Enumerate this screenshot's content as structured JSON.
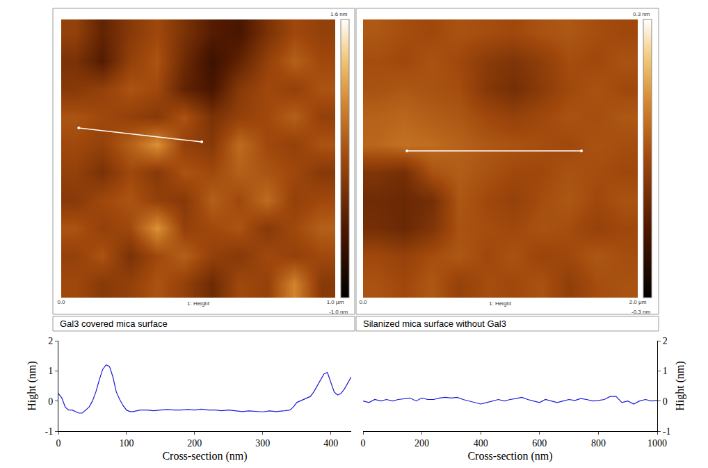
{
  "chart_data": [
    {
      "type": "heatmap",
      "caption": "Gal3 covered mica surface",
      "x_label": "1: Height",
      "x": [
        0.05,
        0.15,
        0.25,
        0.35,
        0.45,
        0.55,
        0.65,
        0.75,
        0.85,
        0.95
      ],
      "y": [
        0.05,
        0.15,
        0.25,
        0.35,
        0.45,
        0.55,
        0.65,
        0.75,
        0.85,
        0.95
      ],
      "z": [
        [
          0.3,
          0.1,
          0.2,
          0.4,
          0.2,
          -0.1,
          0.3,
          0.2,
          0.8,
          0.1
        ],
        [
          0.2,
          0.4,
          0.0,
          0.3,
          0.5,
          0.2,
          0.1,
          0.3,
          0.2,
          0.3
        ],
        [
          0.4,
          0.2,
          0.3,
          0.9,
          0.2,
          0.3,
          0.4,
          0.1,
          0.3,
          0.5
        ],
        [
          0.1,
          0.3,
          0.4,
          0.2,
          0.1,
          0.5,
          0.3,
          0.6,
          0.2,
          0.3
        ],
        [
          0.2,
          0.0,
          0.3,
          0.1,
          0.4,
          0.3,
          0.5,
          0.4,
          0.3,
          0.1
        ],
        [
          0.3,
          0.2,
          0.5,
          0.9,
          0.2,
          0.1,
          0.6,
          0.3,
          0.2,
          0.4
        ],
        [
          0.4,
          0.3,
          0.2,
          0.1,
          0.4,
          0.0,
          0.2,
          0.3,
          0.5,
          0.2
        ],
        [
          0.1,
          0.2,
          0.4,
          0.3,
          -0.2,
          -0.4,
          0.1,
          0.3,
          0.2,
          0.4
        ],
        [
          0.0,
          -0.3,
          0.2,
          0.4,
          -0.1,
          -0.5,
          -0.2,
          0.2,
          0.5,
          0.3
        ],
        [
          0.2,
          -0.2,
          0.1,
          0.3,
          0.0,
          -0.3,
          -0.4,
          0.0,
          0.3,
          0.2
        ]
      ],
      "colorbar": {
        "range": [
          -1.0,
          1.6
        ],
        "ticks": [
          {
            "value": 1.6,
            "label": "1.6 nm"
          },
          {
            "value": -1.0,
            "label": "-1.0 nm"
          }
        ]
      },
      "xlim": [
        0,
        1.0
      ],
      "ylim": [
        0,
        1.0
      ],
      "xticks": [
        {
          "value": 0,
          "label": "0.0"
        },
        {
          "value": 1.0,
          "label": "1.0 μm"
        }
      ],
      "tick_labels": "x",
      "profile_line": {
        "x": [
          0.064,
          0.513
        ],
        "y": [
          0.61,
          0.56
        ]
      }
    },
    {
      "type": "heatmap",
      "caption": "Silanized mica surface without Gal3",
      "x_label": "1: Height",
      "x": [
        0.1,
        0.3,
        0.5,
        0.7,
        0.9,
        1.1,
        1.3,
        1.5,
        1.7,
        1.9
      ],
      "y": [
        0.1,
        0.3,
        0.5,
        0.7,
        0.9,
        1.1,
        1.3,
        1.5,
        1.7,
        1.9
      ],
      "z": [
        [
          0.02,
          0.0,
          0.03,
          -0.02,
          0.01,
          0.0,
          0.02,
          -0.03,
          0.01,
          0.02
        ],
        [
          0.0,
          -0.02,
          0.01,
          0.03,
          0.0,
          0.02,
          -0.01,
          0.0,
          0.03,
          0.01
        ],
        [
          -0.08,
          -0.1,
          -0.06,
          0.02,
          0.01,
          0.0,
          0.02,
          0.01,
          -0.02,
          0.0
        ],
        [
          -0.09,
          -0.1,
          -0.08,
          0.03,
          0.0,
          -0.02,
          0.01,
          0.03,
          0.0,
          0.02
        ],
        [
          -0.06,
          -0.08,
          0.02,
          0.04,
          0.02,
          0.0,
          0.0,
          0.02,
          0.01,
          0.0
        ],
        [
          0.06,
          0.08,
          0.07,
          0.05,
          0.03,
          0.02,
          0.01,
          0.0,
          0.02,
          0.01
        ],
        [
          0.05,
          0.06,
          0.04,
          0.03,
          0.0,
          -0.02,
          0.0,
          0.02,
          0.01,
          0.03
        ],
        [
          0.02,
          0.03,
          0.02,
          0.01,
          -0.05,
          -0.08,
          -0.04,
          0.0,
          0.02,
          0.0
        ],
        [
          0.01,
          0.0,
          0.02,
          0.0,
          -0.04,
          -0.06,
          -0.03,
          0.01,
          0.0,
          0.02
        ],
        [
          0.03,
          0.01,
          0.0,
          0.02,
          0.01,
          0.0,
          0.02,
          0.03,
          0.01,
          0.0
        ]
      ],
      "colorbar": {
        "range": [
          -0.3,
          0.3
        ],
        "ticks": [
          {
            "value": 0.3,
            "label": "0.3 nm"
          },
          {
            "value": -0.3,
            "label": "-0.3 nm"
          }
        ]
      },
      "xlim": [
        0,
        2.0
      ],
      "ylim": [
        0,
        2.0
      ],
      "xticks": [
        {
          "value": 0,
          "label": "0.0"
        },
        {
          "value": 2.0,
          "label": "2.0 μm"
        }
      ],
      "tick_labels": "x",
      "profile_line": {
        "x": [
          0.32,
          1.59
        ],
        "y": [
          1.055,
          1.055
        ]
      }
    },
    {
      "type": "line",
      "x_label": "Cross-section (nm)",
      "y_label": "Hight (nm)",
      "x": [
        0,
        5,
        10,
        15,
        20,
        25,
        30,
        35,
        40,
        45,
        50,
        55,
        60,
        65,
        70,
        75,
        80,
        85,
        90,
        95,
        100,
        105,
        110,
        120,
        130,
        140,
        150,
        160,
        170,
        180,
        190,
        200,
        210,
        220,
        230,
        240,
        250,
        260,
        270,
        280,
        290,
        300,
        310,
        320,
        330,
        340,
        345,
        350,
        355,
        360,
        365,
        370,
        375,
        380,
        385,
        390,
        395,
        400,
        405,
        410,
        415,
        420,
        425,
        430
      ],
      "values": [
        0.25,
        0.1,
        -0.2,
        -0.3,
        -0.3,
        -0.35,
        -0.4,
        -0.4,
        -0.3,
        -0.2,
        0.0,
        0.3,
        0.7,
        1.05,
        1.2,
        1.15,
        0.8,
        0.3,
        0.05,
        -0.15,
        -0.3,
        -0.35,
        -0.35,
        -0.3,
        -0.3,
        -0.32,
        -0.3,
        -0.28,
        -0.3,
        -0.3,
        -0.28,
        -0.3,
        -0.27,
        -0.3,
        -0.3,
        -0.32,
        -0.3,
        -0.33,
        -0.35,
        -0.33,
        -0.35,
        -0.36,
        -0.33,
        -0.35,
        -0.33,
        -0.3,
        -0.2,
        -0.05,
        0.0,
        0.05,
        0.1,
        0.15,
        0.3,
        0.5,
        0.7,
        0.9,
        0.95,
        0.6,
        0.3,
        0.2,
        0.25,
        0.4,
        0.6,
        0.8
      ],
      "color": "#1a1adb",
      "xlim": [
        0,
        430
      ],
      "ylim": [
        -1,
        2
      ],
      "xticks": [
        0,
        100,
        200,
        300,
        400
      ],
      "yticks": [
        -1,
        0,
        1,
        2
      ],
      "grid": false
    },
    {
      "type": "line",
      "x_label": "Cross-section (nm)",
      "y_label": "Hight (nm)",
      "x": [
        0,
        20,
        40,
        60,
        80,
        100,
        120,
        140,
        160,
        180,
        200,
        220,
        240,
        260,
        280,
        300,
        320,
        340,
        360,
        380,
        400,
        420,
        440,
        460,
        480,
        500,
        520,
        540,
        560,
        580,
        600,
        620,
        640,
        660,
        680,
        700,
        720,
        740,
        760,
        780,
        800,
        820,
        840,
        860,
        880,
        900,
        920,
        940,
        960,
        980,
        1000
      ],
      "values": [
        0,
        -0.05,
        0.05,
        0,
        0.05,
        0,
        0.05,
        0.08,
        0.1,
        0,
        0.1,
        0.05,
        0.05,
        0.1,
        0.12,
        0.1,
        0.12,
        0.05,
        0.0,
        -0.05,
        -0.1,
        -0.05,
        0,
        0.05,
        0,
        0.05,
        0.08,
        0.12,
        0.05,
        0,
        -0.05,
        0.05,
        0,
        -0.05,
        0,
        0.05,
        0.02,
        0.08,
        0.05,
        0,
        0.02,
        0.05,
        0.15,
        0.15,
        -0.05,
        0,
        -0.1,
        0,
        0.05,
        0,
        0.02
      ],
      "color": "#1a1adb",
      "xlim": [
        0,
        1000
      ],
      "ylim": [
        -1,
        2
      ],
      "xticks": [
        0,
        200,
        400,
        600,
        800,
        1000
      ],
      "yticks": [
        -1,
        0,
        1,
        2
      ],
      "grid": false
    }
  ]
}
